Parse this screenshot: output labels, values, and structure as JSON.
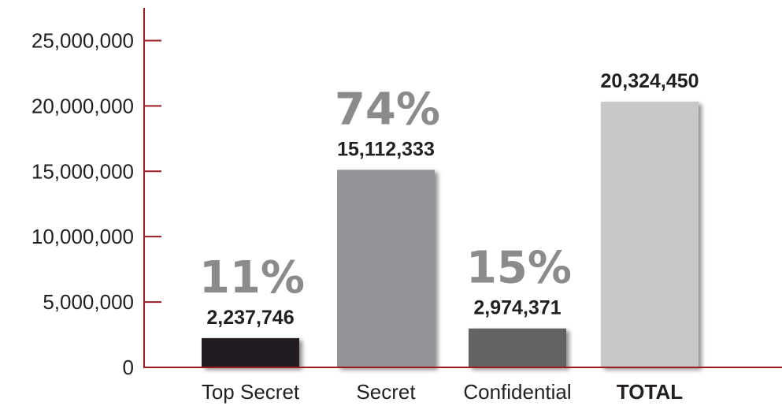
{
  "chart_data": {
    "type": "bar",
    "categories": [
      "Top Secret",
      "Secret",
      "Confidential",
      "TOTAL"
    ],
    "values": [
      2237746,
      15112333,
      2974371,
      20324450
    ],
    "value_labels": [
      "2,237,746",
      "15,112,333",
      "2,974,371",
      "20,324,450"
    ],
    "percent_labels": [
      "11%",
      "74%",
      "15%",
      ""
    ],
    "bar_colors": [
      "#231f20",
      "#939598",
      "#636466",
      "#c7c8ca"
    ],
    "bold_category": "TOTAL",
    "ylim": [
      0,
      27500000
    ],
    "yticks": [
      0,
      5000000,
      10000000,
      15000000,
      20000000,
      25000000
    ],
    "ytick_labels": [
      "0",
      "5,000,000",
      "10,000,000",
      "15,000,000",
      "20,000,000",
      "25,000,000"
    ],
    "axis_color": "#9b1c20",
    "percent_color": "#8a8b8d",
    "grid": false,
    "title": "",
    "xlabel": "",
    "ylabel": ""
  }
}
